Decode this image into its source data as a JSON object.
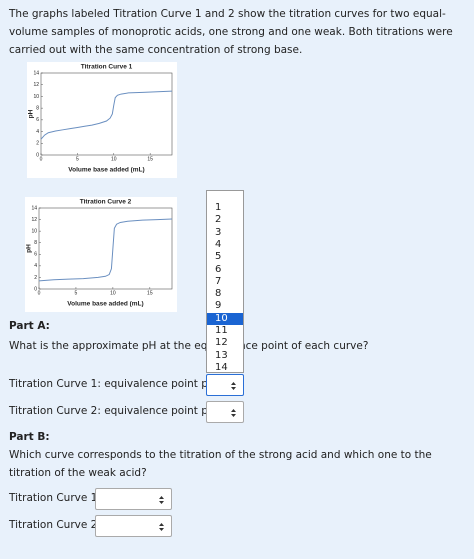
{
  "intro": "The graphs labeled Titration Curve 1 and 2 show the titration curves for two equal-volume samples of monoprotic acids, one strong and one weak. Both titrations were carried out with the same concentration of strong base.",
  "chart_data": [
    {
      "type": "line",
      "title": "Titration Curve 1",
      "x_label": "Volume base added (mL)",
      "y_label": "pH",
      "color": "#6a8fc0",
      "x": [
        0,
        0.5,
        1,
        2,
        3,
        4,
        5,
        6,
        7,
        8,
        9,
        9.5,
        9.8,
        10,
        10.2,
        10.5,
        11,
        12,
        14,
        16,
        18
      ],
      "values": [
        2.7,
        3.4,
        3.8,
        4.1,
        4.3,
        4.5,
        4.7,
        4.9,
        5.1,
        5.4,
        5.8,
        6.3,
        7.0,
        8.5,
        9.8,
        10.2,
        10.4,
        10.6,
        10.7,
        10.8,
        10.9
      ],
      "xlim": [
        0,
        18
      ],
      "xticks": [
        0,
        5,
        10,
        15
      ],
      "ylim": [
        0,
        14
      ],
      "yticks": [
        0,
        2,
        4,
        6,
        8,
        10,
        12,
        14
      ]
    },
    {
      "type": "line",
      "title": "Titration Curve 2",
      "x_label": "Volume base added (mL)",
      "y_label": "pH",
      "color": "#6a8fc0",
      "x": [
        0,
        2,
        4,
        6,
        8,
        9,
        9.5,
        9.8,
        10,
        10.2,
        10.5,
        11,
        12,
        14,
        16,
        18
      ],
      "values": [
        1.4,
        1.6,
        1.7,
        1.8,
        2.0,
        2.2,
        2.5,
        3.5,
        7.0,
        10.5,
        11.2,
        11.5,
        11.7,
        11.9,
        12.0,
        12.1
      ],
      "xlim": [
        0,
        18
      ],
      "xticks": [
        0,
        5,
        10,
        15
      ],
      "ylim": [
        0,
        14
      ],
      "yticks": [
        0,
        2,
        4,
        6,
        8,
        10,
        12,
        14
      ]
    }
  ],
  "part_a": {
    "heading": "Part A:",
    "question": "What is the approximate pH at the equivalence point of each curve?",
    "fields": [
      "Titration Curve 1: equivalence point pH =",
      "Titration Curve 2: equivalence point pH ="
    ]
  },
  "dropdown": {
    "options": [
      "1",
      "2",
      "3",
      "4",
      "5",
      "6",
      "7",
      "8",
      "9",
      "10",
      "11",
      "12",
      "13",
      "14"
    ],
    "highlighted_index": 9
  },
  "part_b": {
    "heading": "Part B:",
    "question": "Which curve corresponds to the titration of the strong acid and which one to the titration of the weak acid?",
    "fields": [
      "Titration Curve 1:",
      "Titration Curve 2:"
    ]
  }
}
